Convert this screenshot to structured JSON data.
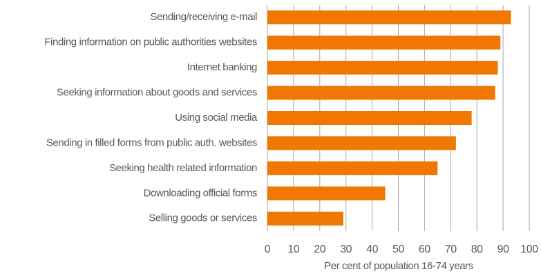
{
  "chart_data": {
    "type": "barh",
    "categories": [
      "Sending/receiving e-mail",
      "Finding information on public authorities websites",
      "Internet banking",
      "Seeking information about goods and services",
      "Using social media",
      "Sending in filled forms from public auth. websites",
      "Seeking health related information",
      "Downloading official forms",
      "Selling goods or services"
    ],
    "values": [
      93,
      89,
      88,
      87,
      78,
      72,
      65,
      45,
      29
    ],
    "color": "#f07800",
    "xlabel": "Per cent of population 16-74 years",
    "xlim": [
      0,
      100
    ],
    "xticks": [
      0,
      10,
      20,
      30,
      40,
      50,
      60,
      70,
      80,
      90,
      100
    ],
    "grid": true
  }
}
